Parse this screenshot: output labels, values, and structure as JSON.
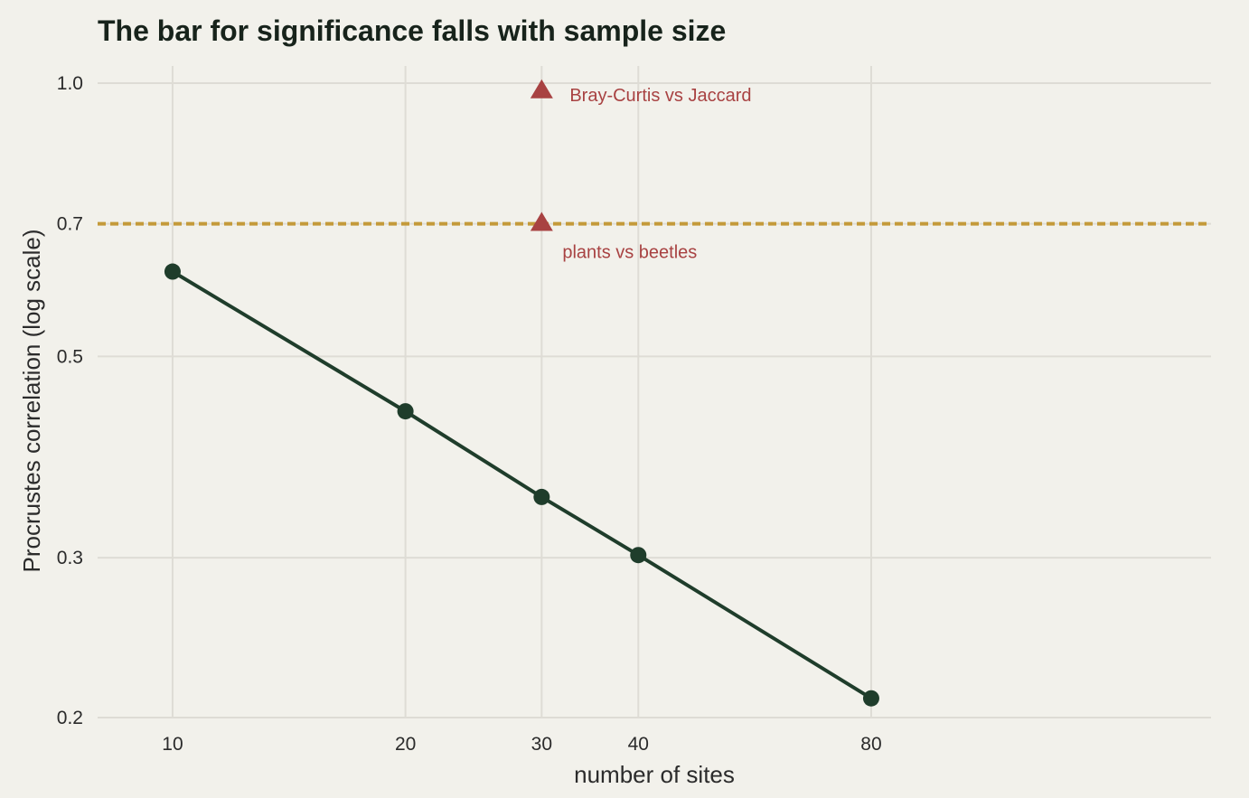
{
  "chart_data": {
    "type": "line",
    "title": "The bar for significance falls with sample size",
    "xlabel": "number of sites",
    "ylabel": "Procrustes correlation (log scale)",
    "x_scale": "log",
    "y_scale": "log",
    "xlim": [
      8,
      220
    ],
    "ylim": [
      0.2,
      1.0
    ],
    "x_ticks": [
      10,
      20,
      30,
      40,
      80
    ],
    "x_tick_labels": [
      "10",
      "20",
      "30",
      "40",
      "80"
    ],
    "y_ticks": [
      0.2,
      0.3,
      0.5,
      0.7,
      1.0
    ],
    "y_tick_labels": [
      "0.2",
      "0.3",
      "0.5",
      "0.7",
      "1.0"
    ],
    "grid": true,
    "series": [
      {
        "x": [
          10,
          20,
          30,
          40,
          80
        ],
        "y": [
          0.62,
          0.435,
          0.35,
          0.302,
          0.21
        ],
        "color": "#1f3d2b",
        "marker": "circle"
      }
    ],
    "reference_line": {
      "y": 0.7,
      "style": "dashed",
      "color": "#c49a3a"
    },
    "annotations": [
      {
        "x": 30,
        "y": 0.98,
        "marker": "triangle",
        "label": "Bray-Curtis vs Jaccard",
        "color": "#a84242"
      },
      {
        "x": 30,
        "y": 0.7,
        "marker": "triangle",
        "label": "plants vs beetles",
        "color": "#a84242"
      }
    ]
  }
}
